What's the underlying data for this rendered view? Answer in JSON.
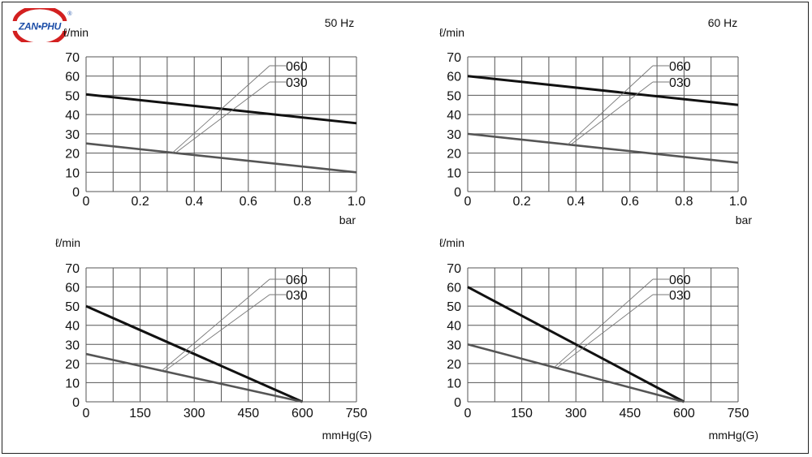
{
  "brand": {
    "logo_text": "ZAN•PHU",
    "registered_mark": "®"
  },
  "colors": {
    "grid": "#555555",
    "series_060": "#111111",
    "series_030": "#555555",
    "leader": "#777777"
  },
  "chart_data": [
    {
      "type": "line",
      "frequency_label": "50 Hz",
      "y_unit": "ℓ/min",
      "x_unit": "bar",
      "x_ticks": [
        "0",
        "0.2",
        "0.4",
        "0.6",
        "0.8",
        "1.0"
      ],
      "y_ticks": [
        "0",
        "10",
        "20",
        "30",
        "40",
        "50",
        "60",
        "70"
      ],
      "xlim": [
        0,
        1.0
      ],
      "ylim": [
        0,
        70
      ],
      "series": [
        {
          "name": "060",
          "x": [
            0,
            1.0
          ],
          "y": [
            50.5,
            35.5
          ]
        },
        {
          "name": "030",
          "x": [
            0,
            1.0
          ],
          "y": [
            25,
            10
          ]
        }
      ],
      "grid": true
    },
    {
      "type": "line",
      "frequency_label": "60 Hz",
      "y_unit": "ℓ/min",
      "x_unit": "bar",
      "x_ticks": [
        "0",
        "0.2",
        "0.4",
        "0.6",
        "0.8",
        "1.0"
      ],
      "y_ticks": [
        "0",
        "10",
        "20",
        "30",
        "40",
        "50",
        "60",
        "70"
      ],
      "xlim": [
        0,
        1.0
      ],
      "ylim": [
        0,
        70
      ],
      "series": [
        {
          "name": "060",
          "x": [
            0,
            1.0
          ],
          "y": [
            60,
            45
          ]
        },
        {
          "name": "030",
          "x": [
            0,
            1.0
          ],
          "y": [
            30,
            15
          ]
        }
      ],
      "grid": true
    },
    {
      "type": "line",
      "frequency_label": "",
      "y_unit": "ℓ/min",
      "x_unit": "mmHg(G)",
      "x_ticks": [
        "0",
        "150",
        "300",
        "450",
        "600",
        "750"
      ],
      "y_ticks": [
        "0",
        "10",
        "20",
        "30",
        "40",
        "50",
        "60",
        "70"
      ],
      "xlim": [
        0,
        750
      ],
      "ylim": [
        0,
        70
      ],
      "series": [
        {
          "name": "060",
          "x": [
            0,
            600
          ],
          "y": [
            50,
            0
          ]
        },
        {
          "name": "030",
          "x": [
            0,
            600
          ],
          "y": [
            25,
            0
          ]
        }
      ],
      "grid": true
    },
    {
      "type": "line",
      "frequency_label": "",
      "y_unit": "ℓ/min",
      "x_unit": "mmHg(G)",
      "x_ticks": [
        "0",
        "150",
        "300",
        "450",
        "600",
        "750"
      ],
      "y_ticks": [
        "0",
        "10",
        "20",
        "30",
        "40",
        "50",
        "60",
        "70"
      ],
      "xlim": [
        0,
        750
      ],
      "ylim": [
        0,
        70
      ],
      "series": [
        {
          "name": "060",
          "x": [
            0,
            600
          ],
          "y": [
            60,
            0
          ]
        },
        {
          "name": "030",
          "x": [
            0,
            600
          ],
          "y": [
            30,
            0
          ]
        }
      ],
      "grid": true
    }
  ]
}
